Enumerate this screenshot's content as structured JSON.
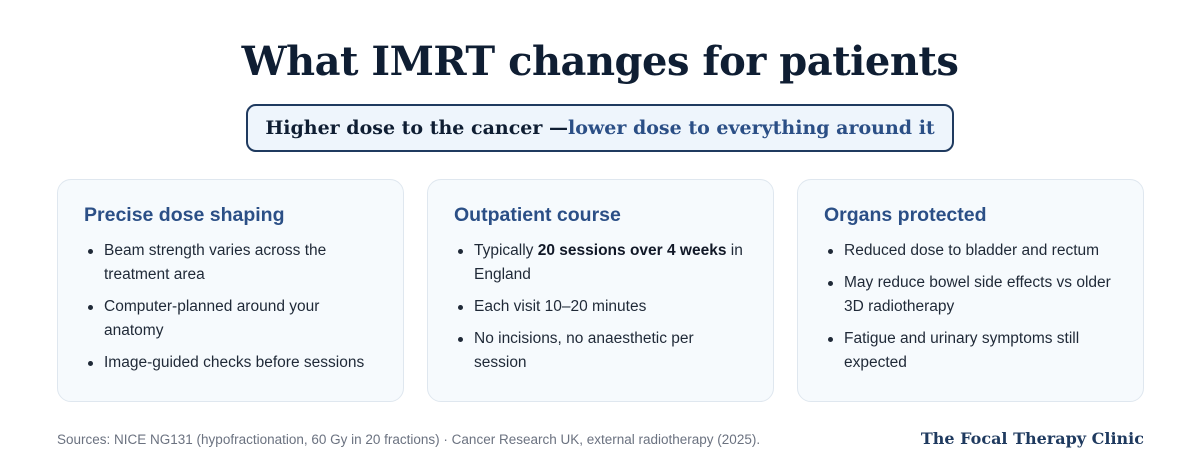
{
  "title": "What IMRT changes for patients",
  "tagline": {
    "lead": "Higher dose to the cancer — ",
    "accent": "lower dose to everything around it"
  },
  "cards": [
    {
      "heading": "Precise dose shaping",
      "items": [
        {
          "text": "Beam strength varies across the treatment area"
        },
        {
          "text": "Computer-planned around your anatomy"
        },
        {
          "text": "Image-guided checks before sessions"
        }
      ]
    },
    {
      "heading": "Outpatient course",
      "items": [
        {
          "pre": "Typically ",
          "bold": "20 sessions over 4 weeks",
          "post": " in England"
        },
        {
          "text": "Each visit 10–20 minutes"
        },
        {
          "text": "No incisions, no anaesthetic per session"
        }
      ]
    },
    {
      "heading": "Organs protected",
      "items": [
        {
          "text": "Reduced dose to bladder and rectum"
        },
        {
          "text": "May reduce bowel side effects vs older 3D radiotherapy"
        },
        {
          "text": "Fatigue and urinary symptoms still expected"
        }
      ]
    }
  ],
  "footer": {
    "sources": "Sources: NICE NG131 (hypofractionation, 60 Gy in 20 fractions) · Cancer Research UK, external radiotherapy (2025).",
    "brand": "The Focal Therapy Clinic"
  },
  "colors": {
    "title": "#0f1e33",
    "accent": "#2b4f86",
    "tagline_border": "#1f3a5f",
    "tagline_bg": "#eef5fc",
    "card_bg": "#f6fafd",
    "card_border": "#dfe7ef",
    "muted_text": "#6b7280"
  }
}
